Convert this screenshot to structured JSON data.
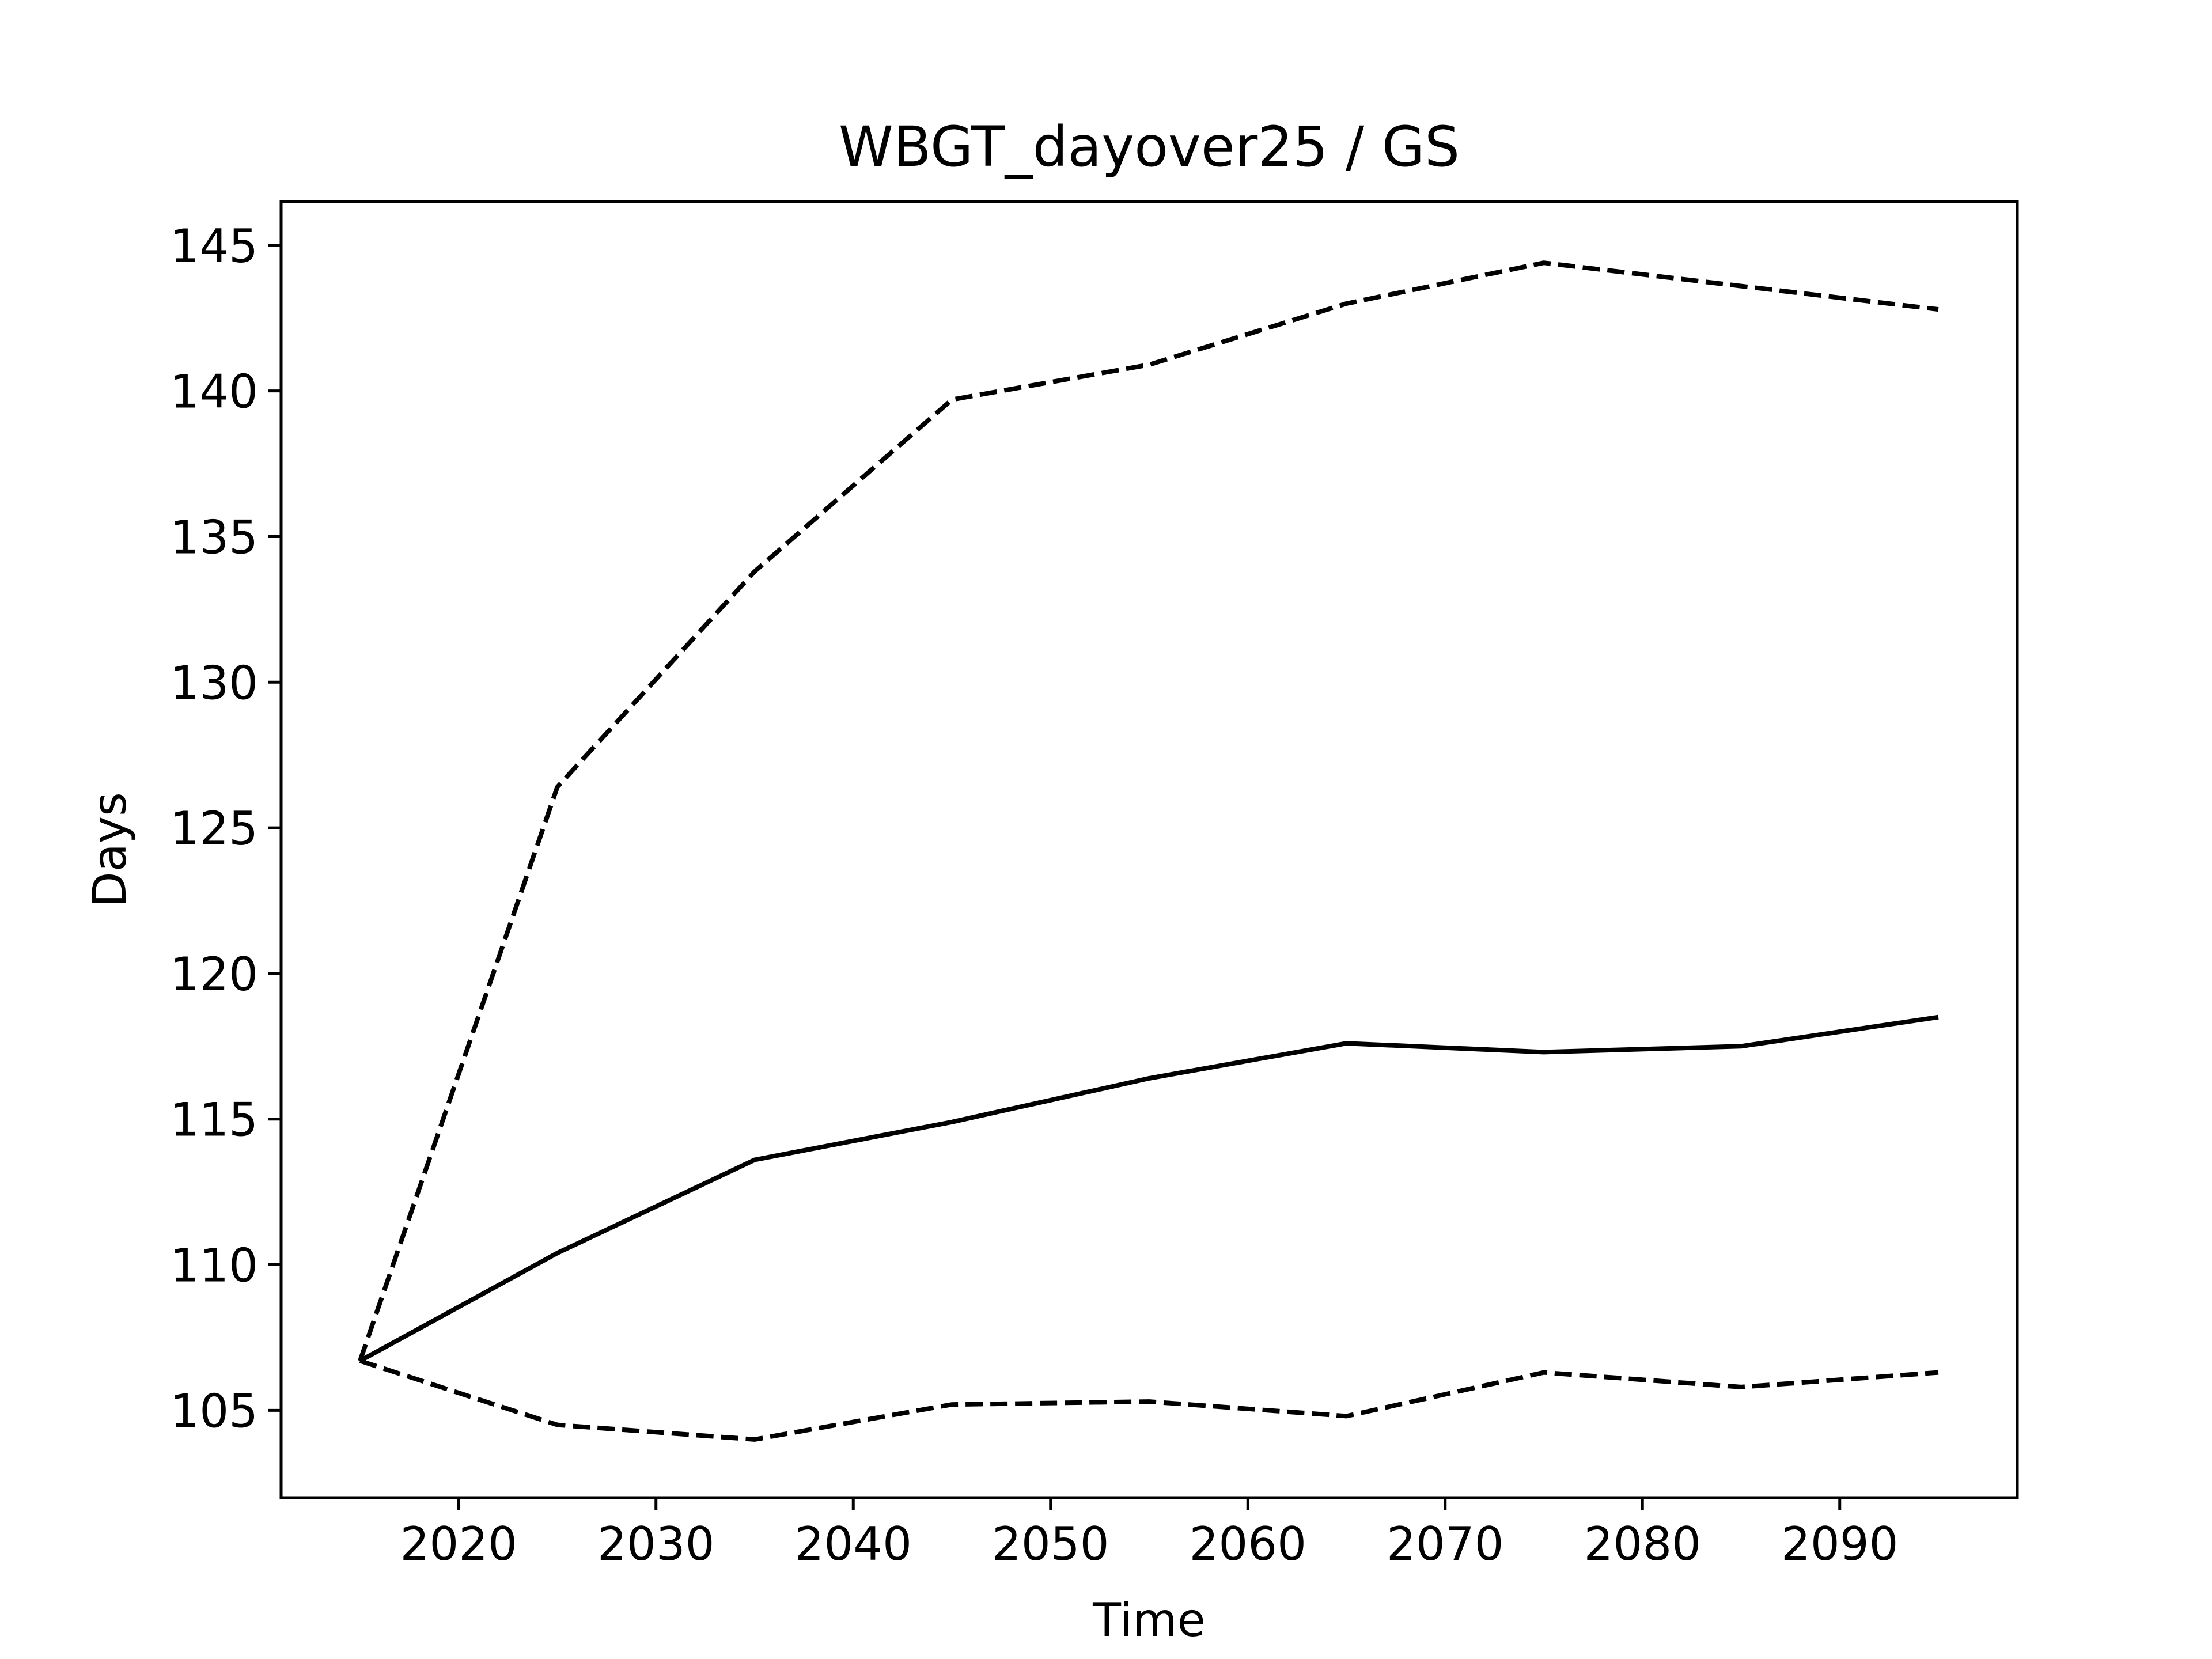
{
  "chart_data": {
    "type": "line",
    "title": "WBGT_dayover25 / GS",
    "xlabel": "Time",
    "ylabel": "Days",
    "xlim": [
      2011,
      2099
    ],
    "ylim": [
      102,
      146.5
    ],
    "xticks": [
      2020,
      2030,
      2040,
      2050,
      2060,
      2070,
      2080,
      2090
    ],
    "yticks": [
      105,
      110,
      115,
      120,
      125,
      130,
      135,
      140,
      145
    ],
    "grid": false,
    "legend": "none",
    "x": [
      2015,
      2025,
      2035,
      2045,
      2055,
      2065,
      2075,
      2085,
      2095
    ],
    "series": [
      {
        "style": "solid",
        "color": "#000000",
        "values": [
          106.7,
          110.4,
          113.6,
          114.9,
          116.4,
          117.6,
          117.3,
          117.5,
          118.5
        ]
      },
      {
        "style": "dashed",
        "color": "#000000",
        "values": [
          106.7,
          126.4,
          133.8,
          139.7,
          140.9,
          143.0,
          144.4,
          143.6,
          142.8
        ]
      },
      {
        "style": "dashed",
        "color": "#000000",
        "values": [
          106.7,
          104.5,
          104.0,
          105.2,
          105.3,
          104.8,
          106.3,
          105.8,
          106.3
        ]
      }
    ]
  }
}
